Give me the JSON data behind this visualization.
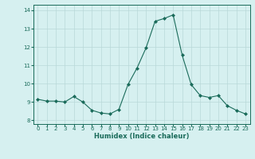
{
  "x": [
    0,
    1,
    2,
    3,
    4,
    5,
    6,
    7,
    8,
    9,
    10,
    11,
    12,
    13,
    14,
    15,
    16,
    17,
    18,
    19,
    20,
    21,
    22,
    23
  ],
  "y": [
    9.15,
    9.05,
    9.05,
    9.0,
    9.3,
    9.0,
    8.55,
    8.4,
    8.35,
    8.6,
    9.95,
    10.85,
    11.95,
    13.4,
    13.55,
    13.75,
    11.55,
    9.95,
    9.35,
    9.25,
    9.35,
    8.8,
    8.55,
    8.35
  ],
  "line_color": "#1a6b5a",
  "marker": "D",
  "marker_size": 2.0,
  "bg_color": "#d6f0f0",
  "grid_color": "#b8d8d8",
  "xlabel": "Humidex (Indice chaleur)",
  "xlim": [
    -0.5,
    23.5
  ],
  "ylim": [
    7.8,
    14.3
  ],
  "yticks": [
    8,
    9,
    10,
    11,
    12,
    13,
    14
  ],
  "xticks": [
    0,
    1,
    2,
    3,
    4,
    5,
    6,
    7,
    8,
    9,
    10,
    11,
    12,
    13,
    14,
    15,
    16,
    17,
    18,
    19,
    20,
    21,
    22,
    23
  ],
  "tick_color": "#1a6b5a",
  "label_color": "#1a6b5a",
  "tick_fontsize": 5.0,
  "xlabel_fontsize": 6.0,
  "linewidth": 0.8
}
